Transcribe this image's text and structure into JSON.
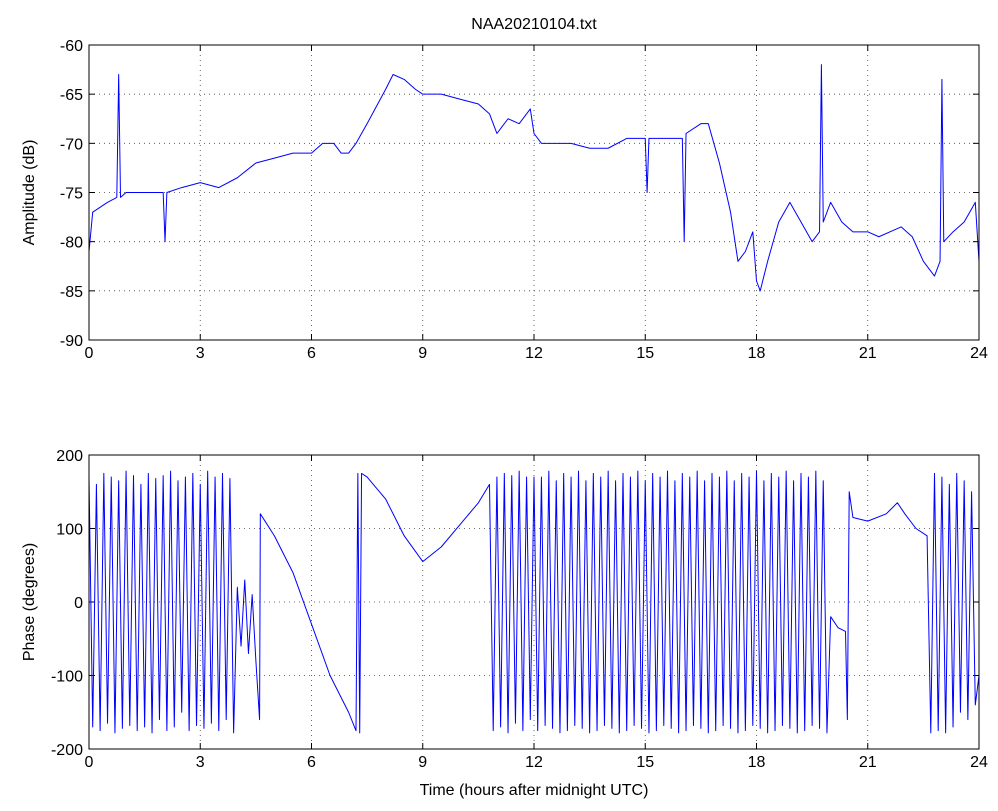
{
  "chart_data": [
    {
      "type": "line",
      "title": "NAA20210104.txt",
      "ylabel": "Amplitude (dB)",
      "x": [
        0,
        0.1,
        0.5,
        0.75,
        0.8,
        0.85,
        1,
        1.5,
        2,
        2.05,
        2.1,
        2.5,
        3,
        3.5,
        4,
        4.5,
        5,
        5.5,
        6,
        6.3,
        6.6,
        6.8,
        7,
        7.2,
        7.5,
        8,
        8.2,
        8.5,
        8.8,
        9,
        9.5,
        10,
        10.5,
        10.8,
        11,
        11.3,
        11.6,
        11.9,
        12,
        12.2,
        12.5,
        13,
        13.5,
        14,
        14.5,
        15,
        15.05,
        15.1,
        15.5,
        16,
        16.05,
        16.1,
        16.5,
        16.7,
        17,
        17.3,
        17.5,
        17.7,
        17.9,
        18,
        18.1,
        18.3,
        18.6,
        18.9,
        19.2,
        19.5,
        19.7,
        19.75,
        19.8,
        20,
        20.3,
        20.6,
        21,
        21.3,
        21.6,
        21.9,
        22.2,
        22.5,
        22.8,
        22.95,
        23,
        23.05,
        23.3,
        23.6,
        23.9,
        24
      ],
      "series": [
        {
          "name": "Amplitude",
          "color": "#0000ff",
          "values": [
            -81,
            -77,
            -76,
            -75.5,
            -63,
            -75.5,
            -75,
            -75,
            -75,
            -80,
            -75,
            -74.5,
            -74,
            -74.5,
            -73.5,
            -72,
            -71.5,
            -71,
            -71,
            -70,
            -70,
            -71,
            -71,
            -70,
            -68,
            -64.5,
            -63,
            -63.5,
            -64.5,
            -65,
            -65,
            -65.5,
            -66,
            -67,
            -69,
            -67.5,
            -68,
            -66.5,
            -69,
            -70,
            -70,
            -70,
            -70.5,
            -70.5,
            -69.5,
            -69.5,
            -75,
            -69.5,
            -69.5,
            -69.5,
            -80,
            -69,
            -68,
            -68,
            -72,
            -77,
            -82,
            -81,
            -79,
            -84,
            -85,
            -82,
            -78,
            -76,
            -78,
            -80,
            -79,
            -62,
            -78,
            -76,
            -78,
            -79,
            -79,
            -79.5,
            -79,
            -78.5,
            -79.5,
            -82,
            -83.5,
            -82,
            -63.5,
            -80,
            -79,
            -78,
            -76,
            -82
          ]
        }
      ],
      "xlim": [
        0,
        24
      ],
      "xticks": [
        0,
        3,
        6,
        9,
        12,
        15,
        18,
        21,
        24
      ],
      "ylim": [
        -90,
        -60
      ],
      "yticks": [
        -90,
        -85,
        -80,
        -75,
        -70,
        -65,
        -60
      ],
      "grid": true
    },
    {
      "type": "line",
      "xlabel": "Time (hours after midnight UTC)",
      "ylabel": "Phase (degrees)",
      "x": [
        0,
        0.1,
        0.2,
        0.3,
        0.4,
        0.5,
        0.6,
        0.7,
        0.8,
        0.9,
        1,
        1.1,
        1.2,
        1.3,
        1.4,
        1.5,
        1.6,
        1.7,
        1.8,
        1.9,
        2,
        2.1,
        2.2,
        2.3,
        2.4,
        2.5,
        2.6,
        2.7,
        2.8,
        2.9,
        3,
        3.1,
        3.2,
        3.3,
        3.4,
        3.5,
        3.6,
        3.7,
        3.8,
        3.9,
        4,
        4.1,
        4.2,
        4.3,
        4.4,
        4.5,
        4.6,
        4.62,
        5,
        5.5,
        6,
        6.5,
        7,
        7.2,
        7.25,
        7.3,
        7.35,
        7.5,
        8,
        8.5,
        9,
        9.5,
        10,
        10.5,
        10.8,
        10.9,
        11,
        11.1,
        11.2,
        11.3,
        11.4,
        11.5,
        11.6,
        11.7,
        11.8,
        11.9,
        12,
        12.1,
        12.2,
        12.3,
        12.4,
        12.5,
        12.6,
        12.7,
        12.8,
        12.9,
        13,
        13.1,
        13.2,
        13.3,
        13.4,
        13.5,
        13.6,
        13.7,
        13.8,
        13.9,
        14,
        14.1,
        14.2,
        14.3,
        14.4,
        14.5,
        14.6,
        14.7,
        14.8,
        14.9,
        15,
        15.1,
        15.2,
        15.3,
        15.4,
        15.5,
        15.6,
        15.7,
        15.8,
        15.9,
        16,
        16.1,
        16.2,
        16.3,
        16.4,
        16.5,
        16.6,
        16.7,
        16.8,
        16.9,
        17,
        17.1,
        17.2,
        17.3,
        17.4,
        17.5,
        17.6,
        17.7,
        17.8,
        17.9,
        18,
        18.1,
        18.2,
        18.3,
        18.4,
        18.5,
        18.6,
        18.7,
        18.8,
        18.9,
        19,
        19.1,
        19.2,
        19.3,
        19.4,
        19.5,
        19.6,
        19.7,
        19.8,
        19.9,
        20,
        20.2,
        20.4,
        20.45,
        20.5,
        20.6,
        21,
        21.5,
        21.8,
        22,
        22.3,
        22.6,
        22.7,
        22.8,
        22.9,
        23,
        23.1,
        23.2,
        23.3,
        23.4,
        23.5,
        23.6,
        23.7,
        23.8,
        23.9,
        24
      ],
      "series": [
        {
          "name": "Phase",
          "color": "#0000ff",
          "values": [
            170,
            -170,
            160,
            -175,
            175,
            -165,
            170,
            -178,
            165,
            -172,
            178,
            -168,
            172,
            -175,
            160,
            -170,
            175,
            -178,
            168,
            -160,
            172,
            -175,
            178,
            -170,
            165,
            -150,
            170,
            -175,
            175,
            -168,
            160,
            -172,
            178,
            -165,
            170,
            -175,
            175,
            -160,
            168,
            -178,
            20,
            -60,
            30,
            -70,
            10,
            -80,
            -160,
            120,
            90,
            40,
            -30,
            -100,
            -150,
            -175,
            175,
            -178,
            175,
            170,
            140,
            90,
            55,
            75,
            105,
            135,
            160,
            -175,
            170,
            -170,
            175,
            -178,
            172,
            -165,
            178,
            -175,
            170,
            -160,
            170,
            -175,
            170,
            -168,
            178,
            -172,
            165,
            -178,
            175,
            -175,
            170,
            -168,
            178,
            -172,
            165,
            -178,
            175,
            -175,
            170,
            -168,
            178,
            -172,
            165,
            -178,
            175,
            -175,
            170,
            -168,
            178,
            -172,
            165,
            -178,
            175,
            -175,
            170,
            -168,
            178,
            -172,
            165,
            -178,
            175,
            -175,
            170,
            -168,
            178,
            -172,
            165,
            -178,
            175,
            -175,
            170,
            -168,
            178,
            -172,
            165,
            -178,
            175,
            -175,
            170,
            -168,
            178,
            -172,
            165,
            -178,
            175,
            -175,
            170,
            -168,
            178,
            -172,
            165,
            -178,
            175,
            -175,
            170,
            -168,
            178,
            -172,
            165,
            -178,
            -20,
            -35,
            -40,
            -160,
            150,
            115,
            110,
            120,
            135,
            120,
            100,
            90,
            -178,
            175,
            -175,
            170,
            -178,
            160,
            -170,
            175,
            -150,
            165,
            -160,
            150,
            -140,
            -100
          ]
        }
      ],
      "xlim": [
        0,
        24
      ],
      "xticks": [
        0,
        3,
        6,
        9,
        12,
        15,
        18,
        21,
        24
      ],
      "ylim": [
        -200,
        200
      ],
      "yticks": [
        -200,
        -100,
        0,
        100,
        200
      ],
      "grid": true
    }
  ]
}
